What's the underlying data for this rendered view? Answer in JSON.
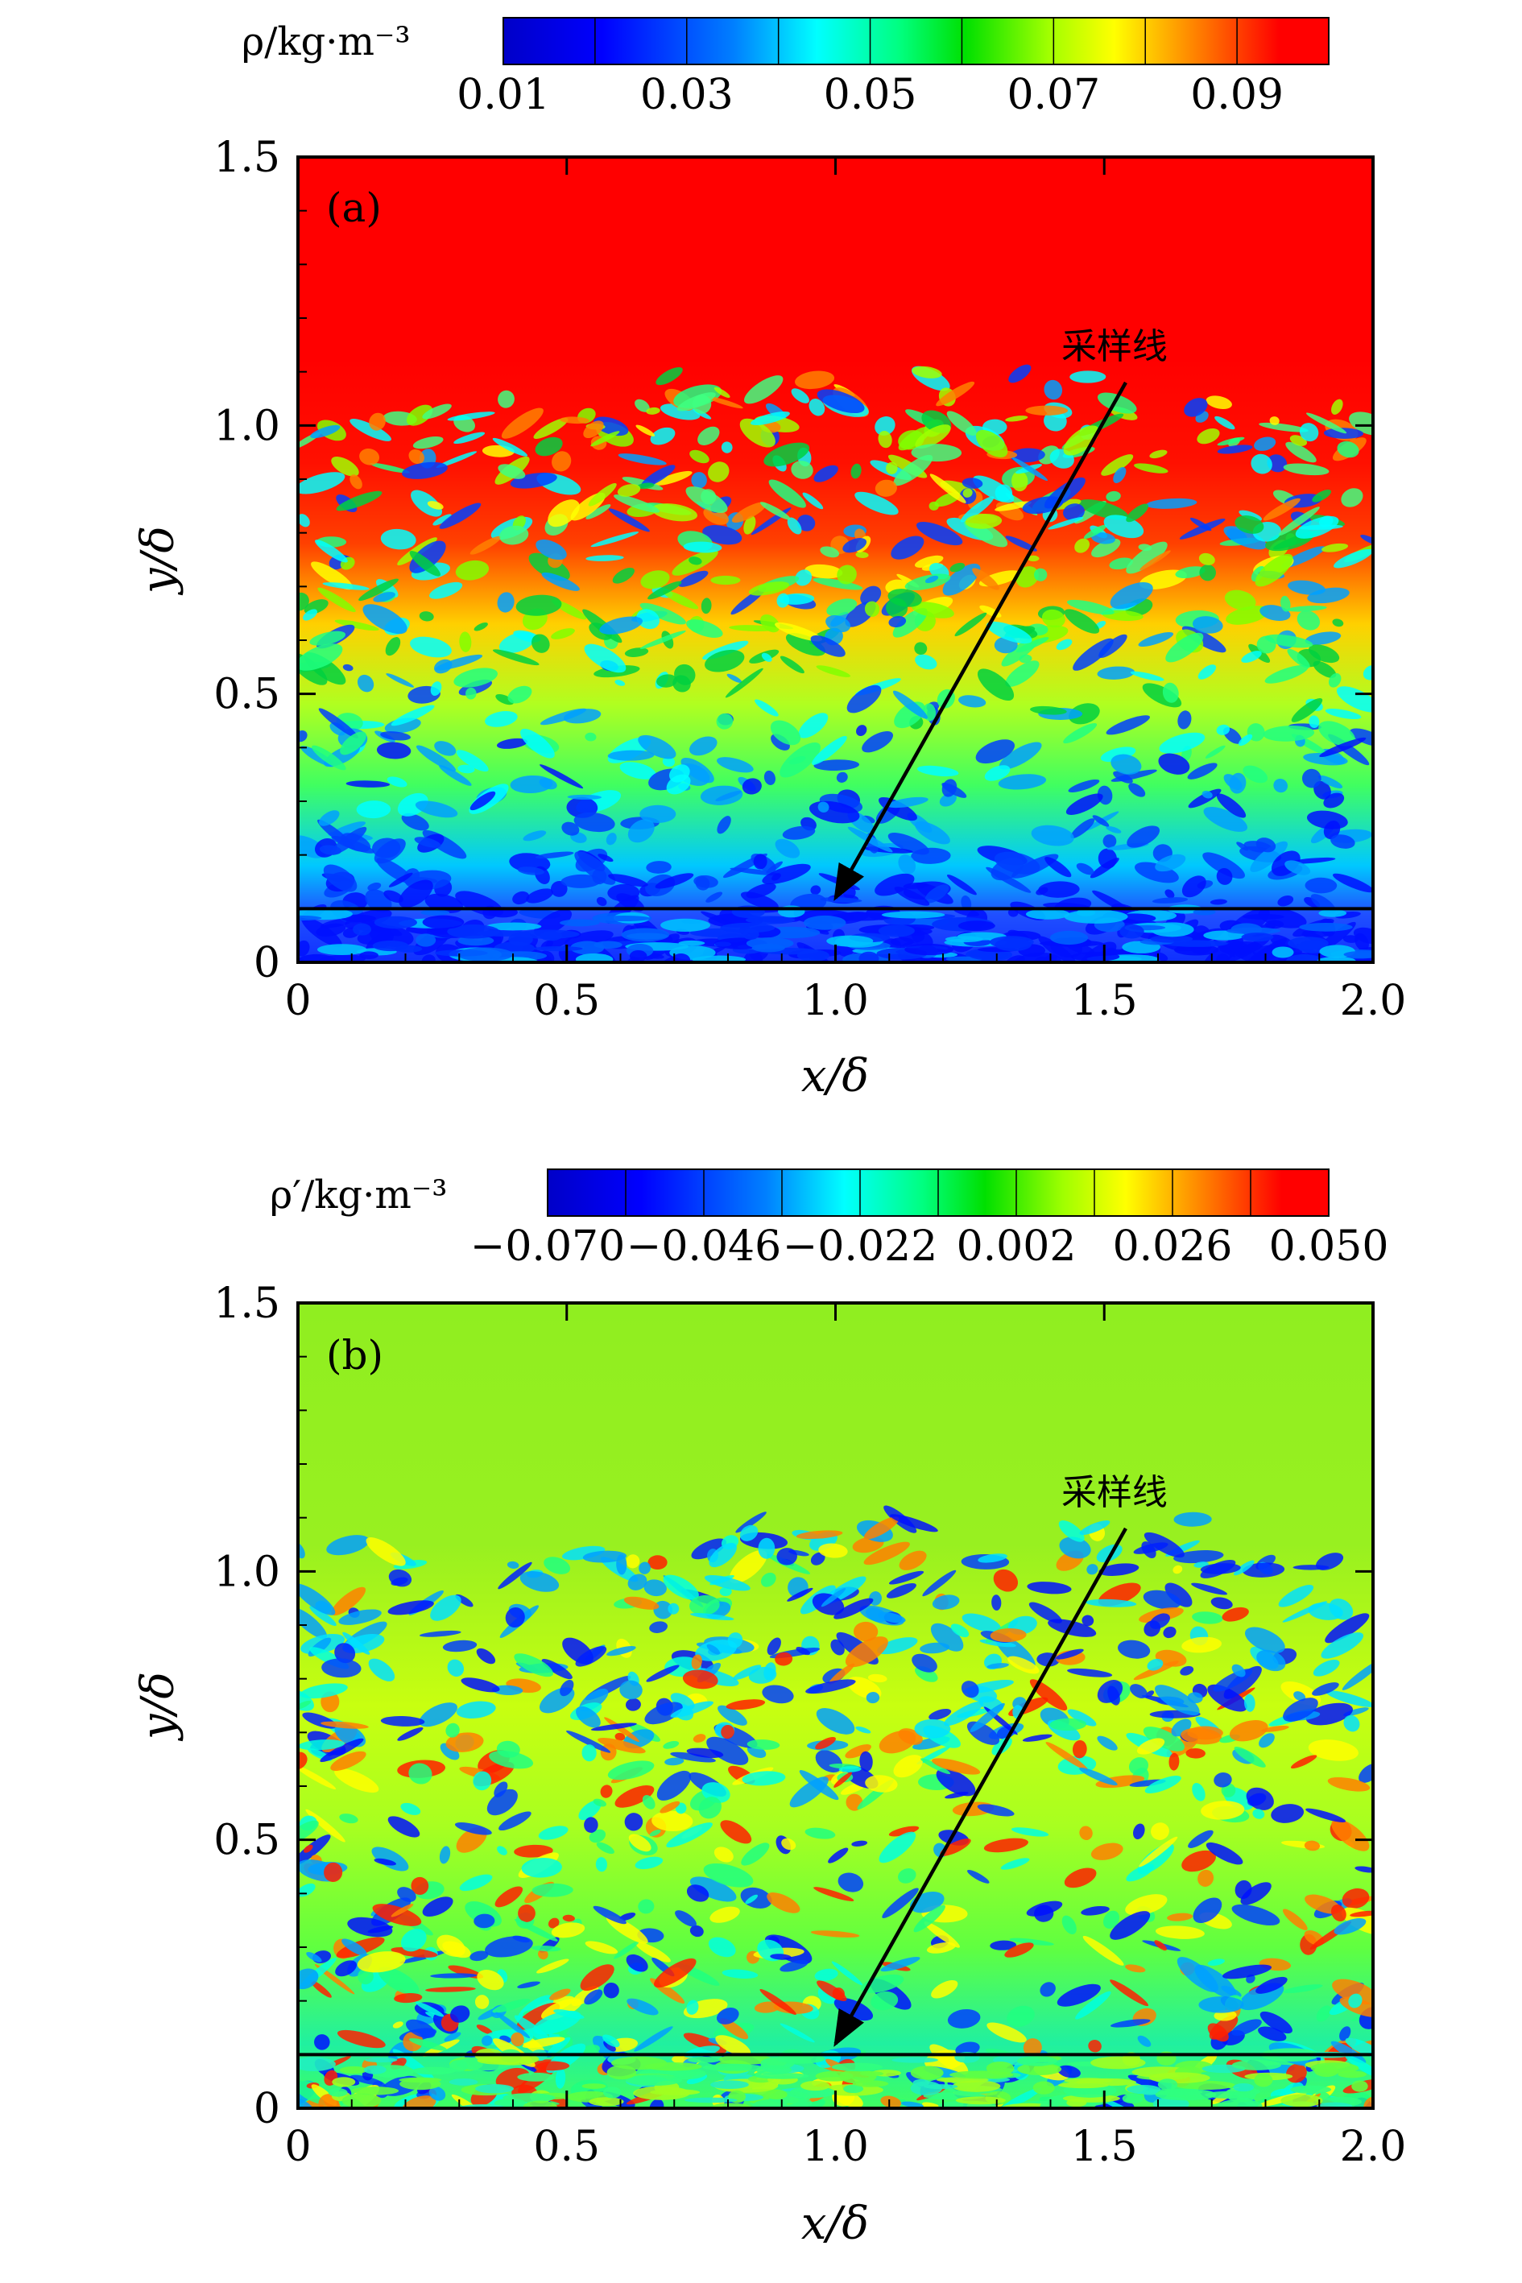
{
  "chart_data": [
    {
      "type": "heatmap",
      "panel_label": "(a)",
      "colorbar": {
        "label": "ρ/kg·m⁻³",
        "tick_labels": [
          "0.01",
          "0.03",
          "0.05",
          "0.07",
          "0.09"
        ],
        "range": [
          0.01,
          0.1
        ]
      },
      "xlabel": "x/δ",
      "ylabel": "y/δ",
      "xlim": [
        0,
        2.0
      ],
      "ylim": [
        0,
        1.5
      ],
      "x_ticks": [
        "0",
        "0.5",
        "1.0",
        "1.5",
        "2.0"
      ],
      "y_ticks": [
        "0",
        "0.5",
        "1.0",
        "1.5"
      ],
      "sampling_line_y": 0.1,
      "annotation": {
        "text": "采样线",
        "arrow_from": [
          1.54,
          1.08
        ],
        "arrow_to": [
          1.0,
          0.12
        ]
      },
      "field_description_levels": {
        "free_stream_value": 0.09,
        "near_wall_value": 0.015
      }
    },
    {
      "type": "heatmap",
      "panel_label": "(b)",
      "colorbar": {
        "label": "ρ′/kg·m⁻³",
        "tick_labels": [
          "−0.070",
          "−0.046",
          "−0.022",
          "0.002",
          "0.026",
          "0.050"
        ],
        "range": [
          -0.07,
          0.05
        ]
      },
      "xlabel": "x/δ",
      "ylabel": "y/δ",
      "xlim": [
        0,
        2.0
      ],
      "ylim": [
        0,
        1.5
      ],
      "x_ticks": [
        "0",
        "0.5",
        "1.0",
        "1.5",
        "2.0"
      ],
      "y_ticks": [
        "0",
        "0.5",
        "1.0",
        "1.5"
      ],
      "sampling_line_y": 0.1,
      "annotation": {
        "text": "采样线",
        "arrow_from": [
          1.54,
          1.08
        ],
        "arrow_to": [
          1.0,
          0.12
        ]
      },
      "field_description_levels": {
        "free_stream_value": 0.002,
        "structure_min_value": -0.065
      }
    }
  ],
  "colors": {
    "jet_stops": [
      "#0000c8",
      "#0000ff",
      "#0080ff",
      "#00ffff",
      "#00ff80",
      "#00ff00",
      "#80ff00",
      "#ffff00",
      "#ff8000",
      "#ff0000"
    ],
    "line": "#000000"
  }
}
